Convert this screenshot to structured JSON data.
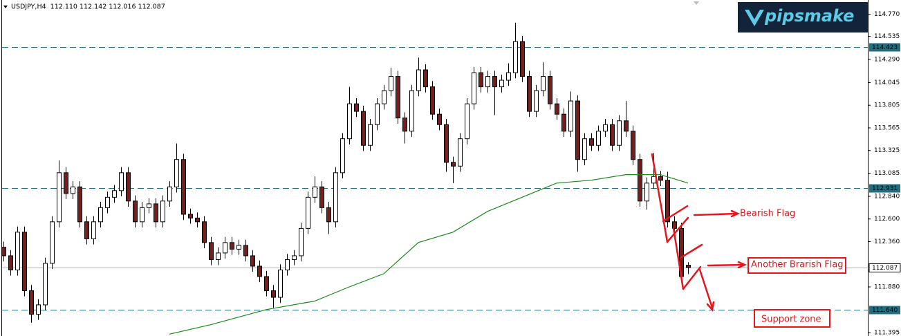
{
  "chart_data": {
    "type": "candlestick",
    "title": "USDJPY,H4  112.110 112.142 112.016 112.087",
    "logo": "pipsmake",
    "annotations": [
      "Bearish Flag",
      "Another Brarish Flag",
      "Support zone"
    ],
    "ylim": [
      111.36,
      114.92
    ],
    "yticks": [
      {
        "value": 114.77,
        "label": "114.770"
      },
      114.535,
      {
        "value": 114.29,
        "label": "114.290"
      },
      114.045,
      113.805,
      113.565,
      113.325,
      113.085,
      {
        "value": 112.84,
        "label": "112.840"
      },
      {
        "value": 112.6,
        "label": "112.600"
      },
      {
        "value": 112.36,
        "label": "112.360"
      },
      {
        "value": 111.88,
        "label": "111.880"
      },
      111.395
    ],
    "levels": [
      114.423,
      112.931,
      {
        "value": 111.64,
        "label": "111.640"
      }
    ],
    "level_color": "#1f6f80",
    "price_line": 112.087,
    "bull_color": "#ffffff",
    "bear_color": "#7a1c1c",
    "open": [
      112.3,
      112.21,
      112.06,
      112.46,
      111.84,
      111.59,
      111.69,
      112.13,
      112.57,
      113.09,
      112.87,
      112.94,
      112.57,
      112.39,
      112.57,
      112.72,
      112.83,
      112.9,
      113.09,
      112.79,
      112.57,
      112.72,
      112.76,
      112.57,
      112.79,
      112.94,
      113.23,
      112.65,
      112.61,
      112.57,
      112.35,
      112.17,
      112.24,
      112.35,
      112.28,
      112.32,
      112.21,
      112.1,
      111.99,
      111.84,
      111.77,
      112.06,
      112.17,
      112.21,
      112.5,
      112.83,
      112.94,
      112.72,
      112.57,
      113.09,
      113.45,
      113.82,
      113.74,
      113.38,
      113.6,
      113.82,
      113.96,
      114.11,
      113.67,
      113.53,
      113.96,
      114.18,
      114.0,
      113.71,
      113.6,
      113.2,
      113.16,
      113.45,
      113.82,
      114.15,
      114.0,
      114.11,
      114.0,
      114.07,
      114.15,
      114.48,
      114.11,
      113.74,
      113.96,
      114.11,
      113.82,
      113.71,
      113.53,
      113.85,
      113.23,
      113.45,
      113.38,
      113.53,
      113.6,
      113.38,
      113.64,
      113.53,
      113.23,
      112.79,
      112.98,
      113.05,
      113.01,
      112.57,
      112.5,
      112.11
    ],
    "high": [
      112.36,
      112.27,
      112.52,
      112.52,
      111.9,
      111.75,
      112.19,
      112.63,
      113.22,
      113.15,
      113.0,
      113.0,
      112.63,
      112.63,
      112.78,
      112.89,
      112.96,
      113.15,
      113.15,
      112.85,
      112.78,
      112.82,
      112.82,
      112.85,
      113.0,
      113.4,
      113.29,
      112.71,
      112.67,
      112.63,
      112.41,
      112.3,
      112.41,
      112.41,
      112.38,
      112.38,
      112.27,
      112.16,
      112.05,
      111.9,
      112.12,
      112.23,
      112.27,
      112.56,
      112.89,
      113.05,
      113.0,
      112.78,
      113.15,
      113.51,
      114.0,
      113.88,
      113.8,
      113.66,
      113.88,
      114.02,
      114.2,
      114.17,
      113.73,
      114.02,
      114.31,
      114.24,
      114.06,
      113.77,
      113.66,
      113.26,
      113.51,
      113.88,
      114.21,
      114.21,
      114.17,
      114.17,
      114.13,
      114.25,
      114.68,
      114.54,
      114.17,
      114.02,
      114.26,
      114.17,
      113.88,
      113.77,
      113.95,
      113.91,
      113.51,
      113.51,
      113.59,
      113.66,
      113.66,
      113.7,
      113.85,
      113.59,
      113.29,
      113.04,
      113.3,
      113.11,
      113.1,
      112.63,
      112.56,
      112.142
    ],
    "low": [
      112.15,
      112.0,
      112.0,
      111.78,
      111.5,
      111.53,
      111.63,
      112.07,
      112.51,
      112.81,
      112.81,
      112.51,
      112.33,
      112.33,
      112.51,
      112.66,
      112.77,
      112.84,
      112.73,
      112.51,
      112.51,
      112.66,
      112.51,
      112.51,
      112.73,
      112.88,
      112.59,
      112.55,
      112.51,
      112.29,
      112.11,
      112.11,
      112.18,
      112.22,
      112.22,
      112.15,
      112.04,
      111.93,
      111.78,
      111.66,
      111.71,
      112.0,
      112.11,
      112.15,
      112.44,
      112.77,
      112.66,
      112.44,
      112.51,
      113.03,
      113.39,
      113.68,
      113.32,
      113.32,
      113.54,
      113.76,
      113.9,
      113.61,
      113.4,
      113.47,
      113.9,
      113.94,
      113.65,
      113.54,
      113.1,
      112.98,
      113.1,
      113.39,
      113.76,
      113.94,
      113.94,
      113.7,
      113.94,
      114.01,
      114.09,
      114.05,
      113.68,
      113.68,
      113.9,
      113.76,
      113.65,
      113.47,
      113.47,
      113.1,
      113.17,
      113.32,
      113.32,
      113.47,
      113.32,
      113.32,
      113.47,
      113.17,
      112.73,
      112.7,
      112.92,
      112.95,
      112.51,
      112.44,
      111.93,
      112.016
    ],
    "close": [
      112.21,
      112.06,
      112.46,
      111.84,
      111.59,
      111.69,
      112.13,
      112.57,
      113.09,
      112.87,
      112.94,
      112.57,
      112.39,
      112.57,
      112.72,
      112.83,
      112.9,
      113.09,
      112.79,
      112.57,
      112.72,
      112.76,
      112.57,
      112.79,
      112.94,
      113.23,
      112.65,
      112.61,
      112.57,
      112.35,
      112.17,
      112.24,
      112.35,
      112.28,
      112.32,
      112.21,
      112.1,
      111.99,
      111.84,
      111.77,
      112.06,
      112.17,
      112.21,
      112.5,
      112.83,
      112.94,
      112.72,
      112.57,
      113.09,
      113.45,
      113.82,
      113.74,
      113.38,
      113.6,
      113.82,
      113.96,
      114.11,
      113.67,
      113.53,
      113.96,
      114.18,
      114.0,
      113.71,
      113.6,
      113.2,
      113.16,
      113.45,
      113.82,
      114.15,
      114.0,
      114.11,
      114.0,
      114.07,
      114.15,
      114.48,
      114.11,
      113.74,
      113.96,
      114.11,
      113.82,
      113.71,
      113.53,
      113.85,
      113.23,
      113.45,
      113.38,
      113.53,
      113.6,
      113.38,
      113.64,
      113.53,
      113.23,
      112.79,
      112.98,
      113.05,
      113.01,
      112.57,
      112.5,
      111.99,
      112.087
    ],
    "moving_average": {
      "color": "#1a8a1a",
      "x": [
        24,
        30,
        38,
        45,
        50,
        55,
        60,
        65,
        70,
        75,
        80,
        85,
        90,
        95,
        99
      ],
      "values": [
        111.38,
        111.48,
        111.64,
        111.73,
        111.88,
        112.02,
        112.35,
        112.46,
        112.68,
        112.83,
        112.98,
        113.01,
        113.07,
        113.07,
        112.98
      ]
    }
  }
}
